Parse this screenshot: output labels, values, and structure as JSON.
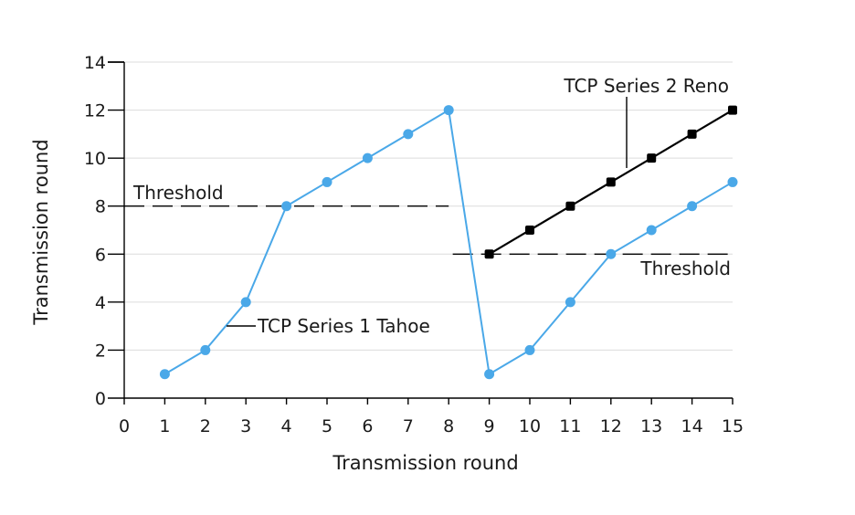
{
  "chart_data": {
    "type": "line",
    "xlabel": "Transmission round",
    "ylabel": "Transmission round",
    "xlim": [
      0,
      15
    ],
    "ylim": [
      0,
      14
    ],
    "x_ticks": [
      "0",
      "1",
      "2",
      "3",
      "4",
      "5",
      "6",
      "7",
      "8",
      "9",
      "10",
      "11",
      "12",
      "13",
      "14",
      "15"
    ],
    "y_ticks": [
      "0",
      "2",
      "4",
      "6",
      "8",
      "10",
      "12",
      "14"
    ],
    "grid": "horizontal",
    "series": [
      {
        "name": "TCP Series 1 Tahoe",
        "color": "#4aa8e8",
        "marker": "circle",
        "x": [
          1,
          2,
          3,
          4,
          5,
          6,
          7,
          8,
          9,
          10,
          11,
          12,
          13,
          14,
          15
        ],
        "y": [
          1,
          2,
          4,
          8,
          9,
          10,
          11,
          12,
          1,
          2,
          4,
          6,
          7,
          8,
          9
        ]
      },
      {
        "name": "TCP Series 2 Reno",
        "color": "#000000",
        "marker": "square",
        "x": [
          9,
          10,
          11,
          12,
          13,
          14,
          15
        ],
        "y": [
          6,
          7,
          8,
          9,
          10,
          11,
          12
        ]
      }
    ],
    "thresholds": [
      {
        "label": "Threshold",
        "y": 8,
        "x_from": 0,
        "x_to": 8
      },
      {
        "label": "Threshold",
        "y": 6,
        "x_from": 8.1,
        "x_to": 15
      }
    ]
  }
}
